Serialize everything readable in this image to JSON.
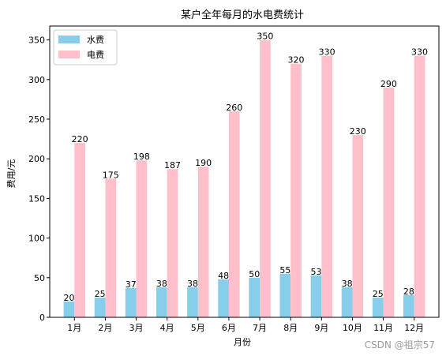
{
  "chart_data": {
    "type": "bar",
    "title": "某户全年每月的水电费统计",
    "xlabel": "月份",
    "ylabel": "费用/元",
    "categories": [
      "1月",
      "2月",
      "3月",
      "4月",
      "5月",
      "6月",
      "7月",
      "8月",
      "9月",
      "10月",
      "11月",
      "12月"
    ],
    "series": [
      {
        "name": "水费",
        "color": "#87ceeb",
        "values": [
          20,
          25,
          37,
          38,
          38,
          48,
          50,
          55,
          53,
          38,
          25,
          28
        ]
      },
      {
        "name": "电费",
        "color": "#ffc0cb",
        "values": [
          220,
          175,
          198,
          187,
          190,
          260,
          350,
          320,
          330,
          230,
          290,
          330
        ]
      }
    ],
    "ylim": [
      0,
      367.5
    ],
    "yticks": [
      0,
      50,
      100,
      150,
      200,
      250,
      300,
      350
    ],
    "legend_position": "upper-left",
    "grid": false
  },
  "watermark": "CSDN @祖宗57"
}
